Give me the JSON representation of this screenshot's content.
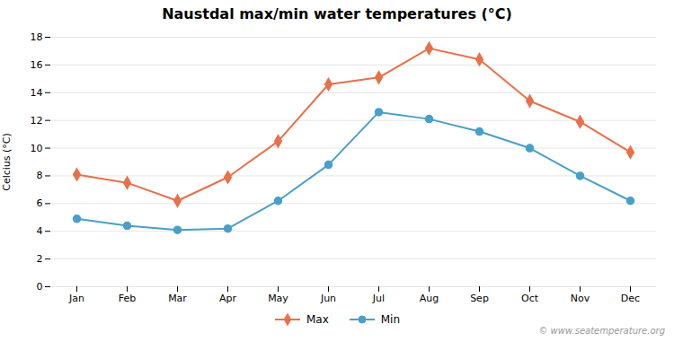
{
  "chart_data": {
    "type": "line",
    "title": "Naustdal max/min water temperatures (°C)",
    "ylabel": "Celcius (°C)",
    "categories": [
      "Jan",
      "Feb",
      "Mar",
      "Apr",
      "May",
      "Jun",
      "Jul",
      "Aug",
      "Sep",
      "Oct",
      "Nov",
      "Dec"
    ],
    "series": [
      {
        "name": "Max",
        "color": "#e8704a",
        "marker": "diamond",
        "values": [
          8.1,
          7.5,
          6.2,
          7.9,
          10.5,
          14.6,
          15.1,
          17.2,
          16.4,
          13.4,
          11.9,
          9.7
        ]
      },
      {
        "name": "Min",
        "color": "#4a9fc8",
        "marker": "circle",
        "values": [
          4.9,
          4.4,
          4.1,
          4.2,
          6.2,
          8.8,
          12.6,
          12.1,
          11.2,
          10.0,
          8.0,
          6.2
        ]
      }
    ],
    "ylim": [
      0,
      18
    ],
    "yticks": [
      0,
      2,
      4,
      6,
      8,
      10,
      12,
      14,
      16,
      18
    ],
    "grid": true,
    "legend": "bottom",
    "annotations": [
      "© www.seatemperature.org"
    ]
  }
}
